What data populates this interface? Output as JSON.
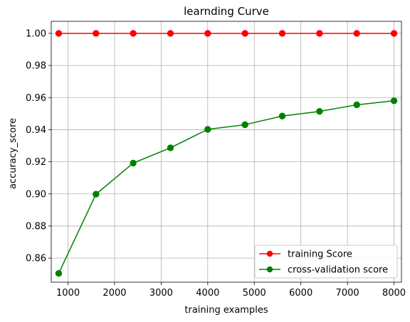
{
  "chart_data": {
    "type": "line",
    "title": "learnding Curve",
    "xlabel": "training examples",
    "ylabel": "accuracy_score",
    "xlim": [
      640,
      8160
    ],
    "ylim": [
      0.845,
      1.0075
    ],
    "xticks": [
      1000,
      2000,
      3000,
      4000,
      5000,
      6000,
      7000,
      8000
    ],
    "xtick_labels": [
      "1000",
      "2000",
      "3000",
      "4000",
      "5000",
      "6000",
      "7000",
      "8000"
    ],
    "yticks": [
      0.86,
      0.88,
      0.9,
      0.92,
      0.94,
      0.96,
      0.98,
      1.0
    ],
    "ytick_labels": [
      "0.86",
      "0.88",
      "0.90",
      "0.92",
      "0.94",
      "0.96",
      "0.98",
      "1.00"
    ],
    "grid": true,
    "legend_position": "lower-right",
    "x": [
      800,
      1600,
      2400,
      3200,
      4000,
      4800,
      5600,
      6400,
      7200,
      8000
    ],
    "series": [
      {
        "name": "training Score",
        "color": "#ff0000",
        "marker": "circle",
        "values": [
          1.0,
          1.0,
          1.0,
          1.0,
          1.0,
          1.0,
          1.0,
          1.0,
          1.0,
          1.0
        ]
      },
      {
        "name": "cross-validation score",
        "color": "#008000",
        "marker": "circle",
        "values": [
          0.8505,
          0.8998,
          0.9192,
          0.9287,
          0.9402,
          0.9431,
          0.9485,
          0.9514,
          0.9555,
          0.958
        ]
      }
    ]
  }
}
